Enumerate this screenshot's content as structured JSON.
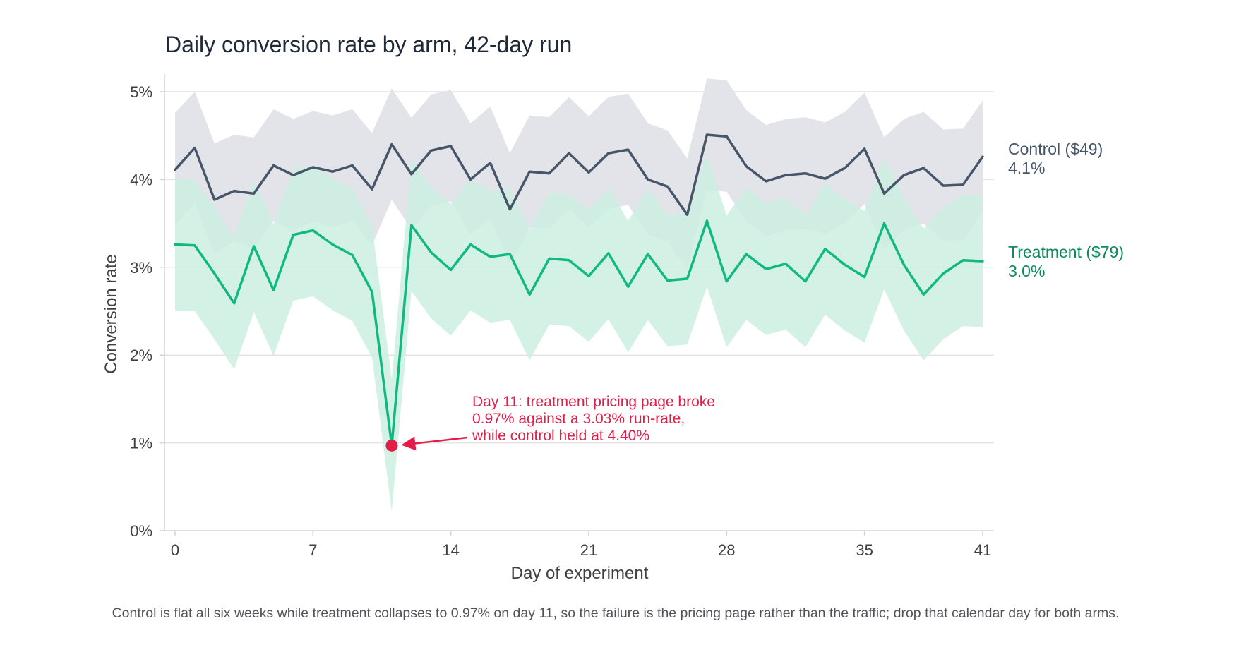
{
  "chart_data": {
    "type": "line",
    "title": "Daily conversion rate by arm, 42-day run",
    "xlabel": "Day of experiment",
    "ylabel": "Conversion rate",
    "xlim": [
      0,
      41
    ],
    "ylim": [
      0,
      5
    ],
    "x_ticks": [
      0,
      7,
      14,
      21,
      28,
      35,
      41
    ],
    "x_tick_labels": [
      "0",
      "7",
      "14",
      "21",
      "28",
      "35",
      "41"
    ],
    "y_ticks": [
      0,
      1,
      2,
      3,
      4,
      5
    ],
    "y_tick_labels": [
      "0%",
      "1%",
      "2%",
      "3%",
      "4%",
      "5%"
    ],
    "grid": "horizontal",
    "x": [
      0,
      1,
      2,
      3,
      4,
      5,
      6,
      7,
      8,
      9,
      10,
      11,
      12,
      13,
      14,
      15,
      16,
      17,
      18,
      19,
      20,
      21,
      22,
      23,
      24,
      25,
      26,
      27,
      28,
      29,
      30,
      31,
      32,
      33,
      34,
      35,
      36,
      37,
      38,
      39,
      40,
      41
    ],
    "series": [
      {
        "name": "Control ($49)",
        "end_label": "4.1%",
        "color": "#475569",
        "band_color": "#e3e4e9",
        "values": [
          4.11,
          4.36,
          3.77,
          3.87,
          3.84,
          4.16,
          4.05,
          4.14,
          4.09,
          4.16,
          3.89,
          4.4,
          4.06,
          4.33,
          4.38,
          4.0,
          4.19,
          3.66,
          4.09,
          4.07,
          4.3,
          4.08,
          4.3,
          4.34,
          4.0,
          3.92,
          3.6,
          4.51,
          4.49,
          4.15,
          3.98,
          4.05,
          4.07,
          4.01,
          4.13,
          4.35,
          3.84,
          4.05,
          4.13,
          3.93,
          3.94,
          4.26
        ],
        "lower": [
          3.48,
          3.73,
          3.15,
          3.3,
          3.21,
          3.53,
          3.42,
          3.52,
          3.46,
          3.53,
          3.25,
          3.77,
          3.43,
          3.7,
          3.75,
          3.37,
          3.56,
          3.03,
          3.46,
          3.44,
          3.67,
          3.45,
          3.67,
          3.71,
          3.37,
          3.29,
          2.97,
          3.88,
          3.86,
          3.52,
          3.35,
          3.42,
          3.44,
          3.38,
          3.5,
          3.72,
          3.21,
          3.42,
          3.5,
          3.3,
          3.31,
          3.63
        ],
        "upper": [
          4.76,
          5.0,
          4.41,
          4.51,
          4.48,
          4.8,
          4.69,
          4.78,
          4.73,
          4.8,
          4.53,
          5.04,
          4.7,
          4.97,
          5.02,
          4.64,
          4.83,
          4.3,
          4.73,
          4.71,
          4.94,
          4.72,
          4.94,
          4.98,
          4.64,
          4.56,
          4.24,
          5.15,
          5.13,
          4.79,
          4.62,
          4.69,
          4.71,
          4.65,
          4.77,
          4.99,
          4.48,
          4.69,
          4.77,
          4.57,
          4.58,
          4.9
        ]
      },
      {
        "name": "Treatment ($79)",
        "end_label": "3.0%",
        "color": "#10b981",
        "label_color": "#0f8a5f",
        "band_color": "#cdefe2",
        "values": [
          3.26,
          3.25,
          2.93,
          2.59,
          3.24,
          2.74,
          3.37,
          3.42,
          3.26,
          3.14,
          2.72,
          0.97,
          3.48,
          3.17,
          2.97,
          3.26,
          3.12,
          3.15,
          2.69,
          3.1,
          3.08,
          2.9,
          3.16,
          2.78,
          3.15,
          2.85,
          2.87,
          3.53,
          2.84,
          3.15,
          2.98,
          3.04,
          2.84,
          3.21,
          3.03,
          2.89,
          3.5,
          3.03,
          2.69,
          2.93,
          3.08,
          3.07
        ],
        "lower": [
          2.51,
          2.5,
          2.18,
          1.84,
          2.49,
          1.99,
          2.62,
          2.67,
          2.51,
          2.39,
          1.97,
          0.22,
          2.73,
          2.42,
          2.22,
          2.51,
          2.37,
          2.4,
          1.94,
          2.35,
          2.33,
          2.15,
          2.41,
          2.03,
          2.4,
          2.1,
          2.12,
          2.78,
          2.09,
          2.4,
          2.23,
          2.29,
          2.09,
          2.46,
          2.28,
          2.14,
          2.75,
          2.28,
          1.94,
          2.18,
          2.33,
          2.32
        ],
        "upper": [
          4.01,
          4.0,
          3.68,
          3.34,
          3.99,
          3.49,
          4.12,
          4.17,
          4.01,
          3.89,
          3.47,
          1.72,
          4.23,
          3.92,
          3.72,
          4.01,
          3.87,
          3.9,
          3.44,
          3.85,
          3.83,
          3.65,
          3.91,
          3.53,
          3.9,
          3.6,
          3.62,
          4.28,
          3.59,
          3.9,
          3.73,
          3.79,
          3.59,
          3.96,
          3.78,
          3.64,
          4.25,
          3.78,
          3.44,
          3.68,
          3.83,
          3.82
        ]
      }
    ],
    "annotation": {
      "x": 11,
      "y": 0.97,
      "color": "#e11d48",
      "lines": [
        "Day 11: treatment pricing page broke",
        "0.97% against a 3.03% run-rate,",
        "while control held at 4.40%"
      ]
    },
    "caption": "Control is flat all six weeks while treatment collapses to 0.97% on day 11, so the failure is the pricing page rather than the traffic; drop that calendar day for both arms."
  }
}
